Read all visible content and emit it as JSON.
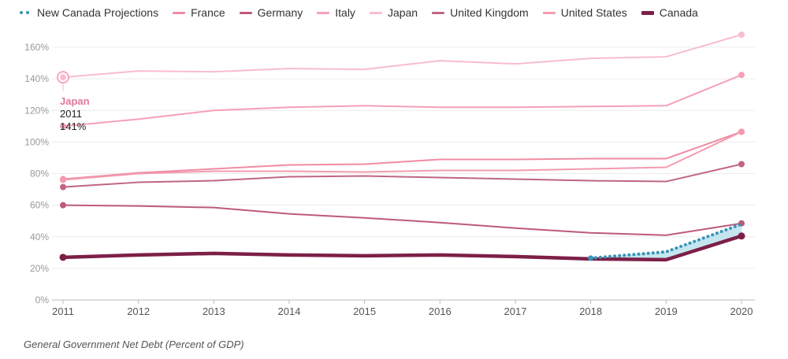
{
  "chart_data": {
    "type": "line",
    "x": [
      "2011",
      "2012",
      "2013",
      "2014",
      "2015",
      "2016",
      "2017",
      "2018",
      "2019",
      "2020"
    ],
    "y_ticks": [
      "0%",
      "20%",
      "40%",
      "60%",
      "80%",
      "100%",
      "120%",
      "140%",
      "160%"
    ],
    "ylim": [
      0,
      170
    ],
    "grid": true,
    "legend_position": "top-left",
    "caption": "General Government Net Debt (Percent of GDP)",
    "series": [
      {
        "name": "New Canada Projections",
        "color": "#3a94b6",
        "style": "dotted",
        "x": [
          "2018",
          "2019",
          "2020"
        ],
        "values": [
          26.5,
          30.5,
          48
        ]
      },
      {
        "name": "France",
        "color": "#f08ca3",
        "style": "line",
        "values": [
          76.5,
          80.5,
          83,
          85.5,
          86,
          89,
          89,
          89.5,
          89.5,
          106.5
        ]
      },
      {
        "name": "Germany",
        "color": "#bd5a79",
        "style": "line",
        "values": [
          60,
          59.5,
          58.5,
          54.5,
          52,
          49,
          45.5,
          42.5,
          41,
          48.5
        ]
      },
      {
        "name": "Italy",
        "color": "#f5a0b6",
        "style": "line",
        "values": [
          110,
          114.5,
          120,
          122,
          123,
          122,
          122,
          122.5,
          123,
          142.5
        ]
      },
      {
        "name": "Japan",
        "color": "#f9bcd0",
        "style": "line",
        "values": [
          141,
          145,
          144.5,
          146.5,
          146,
          151.5,
          149.5,
          153,
          154,
          168
        ]
      },
      {
        "name": "United Kingdom",
        "color": "#c06580",
        "style": "line",
        "values": [
          71.5,
          74.5,
          75.5,
          78,
          78.5,
          77.5,
          76.5,
          75.5,
          75,
          86
        ]
      },
      {
        "name": "United States",
        "color": "#f29bae",
        "style": "line",
        "values": [
          76,
          80,
          81.5,
          81.5,
          81,
          82,
          82,
          83,
          84,
          106.5
        ]
      },
      {
        "name": "Canada",
        "color": "#7d1f48",
        "style": "thick",
        "values": [
          27,
          28.5,
          29.5,
          28.5,
          28,
          28.5,
          27.5,
          26,
          25.5,
          40.5
        ]
      }
    ],
    "tooltip": {
      "series": "Japan",
      "year": "2011",
      "value": "141%"
    }
  }
}
